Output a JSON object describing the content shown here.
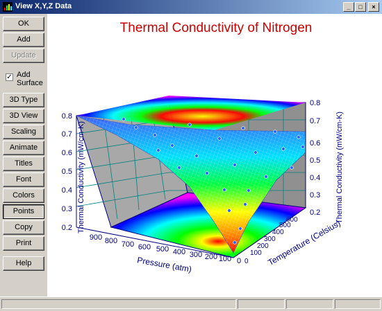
{
  "window": {
    "title": "View X,Y,Z Data"
  },
  "buttons": {
    "ok": "OK",
    "add": "Add",
    "update": "Update",
    "add_surface": "Add Surface",
    "type_3d": "3D Type",
    "view_3d": "3D View",
    "scaling": "Scaling",
    "animate": "Animate",
    "titles": "Titles",
    "font": "Font",
    "colors": "Colors",
    "points": "Points",
    "copy": "Copy",
    "print": "Print",
    "help": "Help"
  },
  "add_surface_checked": true,
  "chart_data": {
    "type": "surface3d",
    "title": "Thermal Conductivity of Nitrogen",
    "xlabel": "Pressure (atm)",
    "ylabel": "Temperature (Celsius)",
    "zlabel": "Thermal Conductivity (mW/cm-K)",
    "x_ticks": [
      "900",
      "800",
      "700",
      "600",
      "500",
      "400",
      "300",
      "200",
      "100",
      "0"
    ],
    "y_ticks": [
      "0",
      "100",
      "200",
      "300",
      "400",
      "500",
      "600"
    ],
    "z_ticks": [
      "0.2",
      "0.3",
      "0.4",
      "0.5",
      "0.6",
      "0.7",
      "0.8"
    ],
    "zlim": [
      0.2,
      0.8
    ],
    "title_color": "#cc0000",
    "axis_color": "#000080"
  }
}
